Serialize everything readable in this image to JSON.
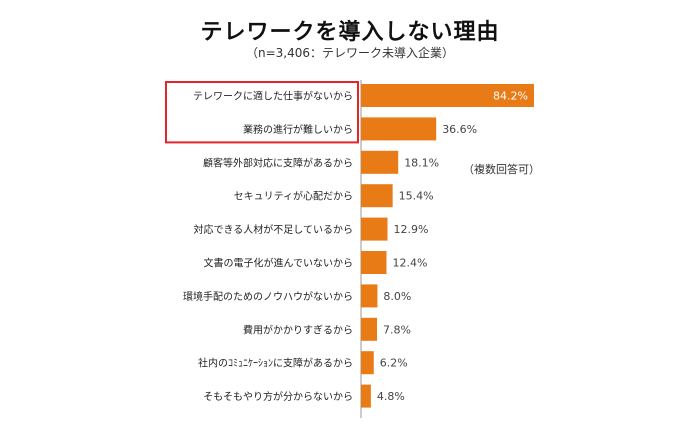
{
  "title": "テレワークを導入しない理由",
  "subtitle": "（n=3,406：テレワーク未導入企業）",
  "note": "（複数回答可）",
  "colors": {
    "bar": "#E97B16",
    "highlight": "#E3242B",
    "axis": "#999999"
  },
  "chart_data": {
    "type": "bar",
    "orientation": "horizontal",
    "title": "テレワークを導入しない理由",
    "categories": [
      "テレワークに適した仕事がないから",
      "業務の進行が難しいから",
      "顧客等外部対応に支障があるから",
      "セキュリティが心配だから",
      "対応できる人材が不足しているから",
      "文書の電子化が進んでいないから",
      "環境手配のためのノウハウがないから",
      "費用がかかりすぎるから",
      "社内のｺﾐｭﾆｹｰｼｮﾝに支障があるから",
      "そもそもやり方が分からないから"
    ],
    "values": [
      84.2,
      36.6,
      18.1,
      15.4,
      12.9,
      12.4,
      8.0,
      7.8,
      6.2,
      4.8
    ],
    "value_labels": [
      "84.2%",
      "36.6%",
      "18.1%",
      "15.4%",
      "12.9%",
      "12.4%",
      "8.0%",
      "7.8%",
      "6.2%",
      "4.8%"
    ],
    "xlim": [
      0,
      84.2
    ],
    "highlighted_categories": [
      0,
      1
    ]
  }
}
